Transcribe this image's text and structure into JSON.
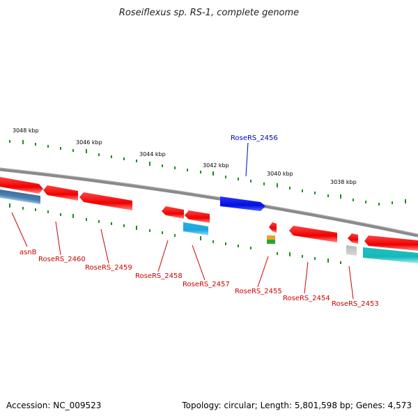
{
  "title": "Roseiflexus sp. RS-1, complete genome",
  "footer": {
    "accession": "Accession: NC_009523",
    "summary": "Topology: circular; Length: 5,801,598 bp; Genes: 4,573"
  },
  "colors": {
    "backbone": "#8a8a8a",
    "tick": "#1e8c1e",
    "label_red": "#cc0000",
    "label_blue": "#0000cc",
    "gene_red": "#ee1111",
    "gene_blue": "#0a14e6",
    "gene_steel": "#4a7fb0",
    "gene_sky": "#29b6ee",
    "gene_cyan": "#22c8c8",
    "gene_gray": "#a8a8a8"
  },
  "tick_labels": [
    "3048 kbp",
    "3046 kbp",
    "3044 kbp",
    "3042 kbp",
    "3040 kbp",
    "3038 kbp"
  ],
  "gene_labels": [
    {
      "text": "RoseRS_2456",
      "color": "blue"
    },
    {
      "text": "asnB",
      "color": "red"
    },
    {
      "text": "RoseRS_2460",
      "color": "red"
    },
    {
      "text": "RoseRS_2459",
      "color": "red"
    },
    {
      "text": "RoseRS_2458",
      "color": "red"
    },
    {
      "text": "RoseRS_2457",
      "color": "red"
    },
    {
      "text": "RoseRS_2455",
      "color": "red"
    },
    {
      "text": "RoseRS_2454",
      "color": "red"
    },
    {
      "text": "RoseRS_2453",
      "color": "red"
    }
  ]
}
